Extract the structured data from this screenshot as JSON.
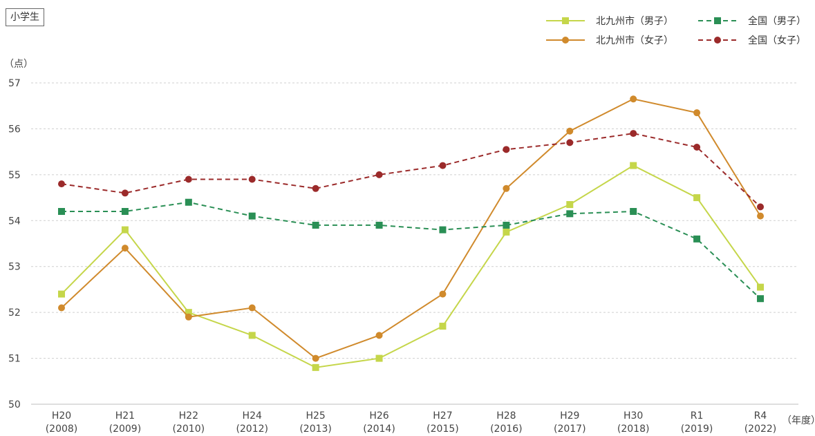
{
  "badge": "小学生",
  "chart_data": {
    "type": "line",
    "ylabel": "（点）",
    "xlabel": "（年度）",
    "ylim": [
      50,
      57
    ],
    "yticks": [
      50,
      51,
      52,
      53,
      54,
      55,
      56,
      57
    ],
    "grid": true,
    "legend_position": "top-right",
    "categories": [
      {
        "top": "H20",
        "bottom": "(2008)"
      },
      {
        "top": "H21",
        "bottom": "(2009)"
      },
      {
        "top": "H22",
        "bottom": "(2010)"
      },
      {
        "top": "H24",
        "bottom": "(2012)"
      },
      {
        "top": "H25",
        "bottom": "(2013)"
      },
      {
        "top": "H26",
        "bottom": "(2014)"
      },
      {
        "top": "H27",
        "bottom": "(2015)"
      },
      {
        "top": "H28",
        "bottom": "(2016)"
      },
      {
        "top": "H29",
        "bottom": "(2017)"
      },
      {
        "top": "H30",
        "bottom": "(2018)"
      },
      {
        "top": "R1",
        "bottom": "(2019)"
      },
      {
        "top": "R4",
        "bottom": "(2022)"
      }
    ],
    "series": [
      {
        "name": "北九州市（男子）",
        "color": "#c5d64a",
        "marker": "square",
        "dash": false,
        "values": [
          52.4,
          53.8,
          52.0,
          51.5,
          50.8,
          51.0,
          51.7,
          53.75,
          54.35,
          55.2,
          54.5,
          52.55
        ]
      },
      {
        "name": "北九州市（女子）",
        "color": "#d08a2c",
        "marker": "circle",
        "dash": false,
        "values": [
          52.1,
          53.4,
          51.9,
          52.1,
          51.0,
          51.5,
          52.4,
          54.7,
          55.95,
          56.65,
          56.35,
          54.1
        ]
      },
      {
        "name": "全国（男子）",
        "color": "#2a8f55",
        "marker": "square",
        "dash": true,
        "values": [
          54.2,
          54.2,
          54.4,
          54.1,
          53.9,
          53.9,
          53.8,
          53.9,
          54.15,
          54.2,
          53.6,
          52.3
        ]
      },
      {
        "name": "全国（女子）",
        "color": "#9b2a2a",
        "marker": "circle",
        "dash": true,
        "values": [
          54.8,
          54.6,
          54.9,
          54.9,
          54.7,
          55.0,
          55.2,
          55.55,
          55.7,
          55.9,
          55.6,
          54.3
        ]
      }
    ]
  }
}
